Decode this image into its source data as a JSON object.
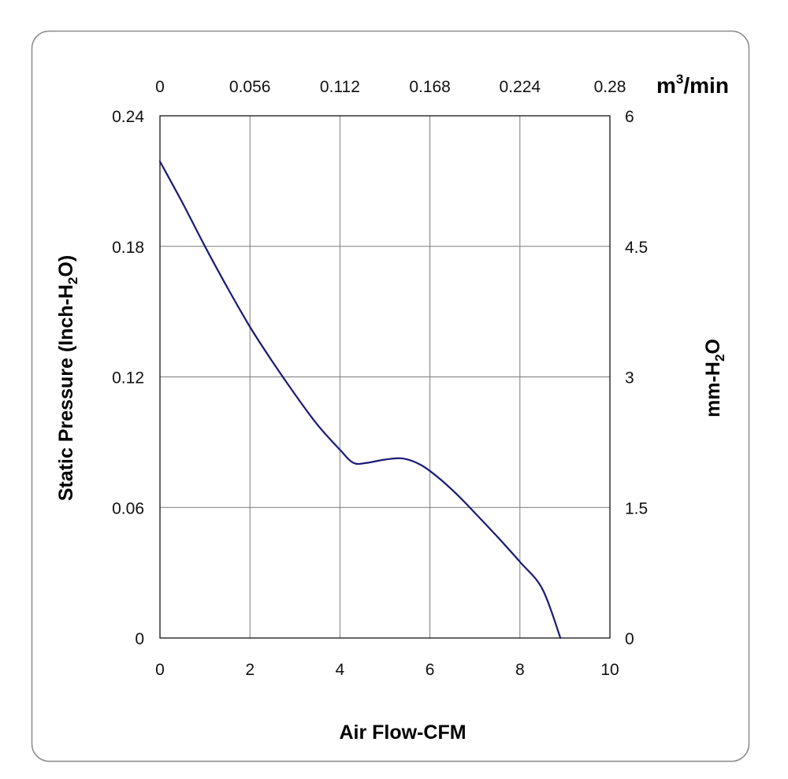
{
  "chart_data": {
    "type": "line",
    "xlabel": "Air Flow-CFM",
    "ylabel": {
      "main": "Static Pressure (Inch-H",
      "sub": "2",
      "tail": "O)"
    },
    "y2label": {
      "main": "mm-H",
      "sub": "2",
      "tail": "O"
    },
    "x2label": {
      "main": "m",
      "sup": "3",
      "tail": "/min"
    },
    "xlim": [
      0,
      10
    ],
    "ylim": [
      0,
      0.24
    ],
    "y2lim": [
      0,
      6
    ],
    "x_ticks": [
      "0",
      "2",
      "4",
      "6",
      "8",
      "10"
    ],
    "x_tick_values": [
      0,
      2,
      4,
      6,
      8,
      10
    ],
    "x2_ticks": [
      "0",
      "0.056",
      "0.112",
      "0.168",
      "0.224",
      "0.28"
    ],
    "y_ticks": [
      "0",
      "0.06",
      "0.12",
      "0.18",
      "0.24"
    ],
    "y_tick_values": [
      0,
      0.06,
      0.12,
      0.18,
      0.24
    ],
    "y2_ticks": [
      "0",
      "1.5",
      "3",
      "4.5",
      "6"
    ],
    "grid": true,
    "series": [
      {
        "color": "#1a1a78",
        "x": [
          0,
          0.5,
          1,
          1.5,
          2,
          2.5,
          3,
          3.5,
          4,
          4.3,
          4.6,
          5,
          5.4,
          5.8,
          6.2,
          6.6,
          7,
          7.5,
          8,
          8.5,
          8.9
        ],
        "y": [
          0.219,
          0.2,
          0.18,
          0.161,
          0.143,
          0.127,
          0.112,
          0.098,
          0.0865,
          0.0805,
          0.0805,
          0.082,
          0.0825,
          0.0795,
          0.0735,
          0.066,
          0.0575,
          0.0465,
          0.035,
          0.0225,
          0.0
        ]
      }
    ]
  }
}
